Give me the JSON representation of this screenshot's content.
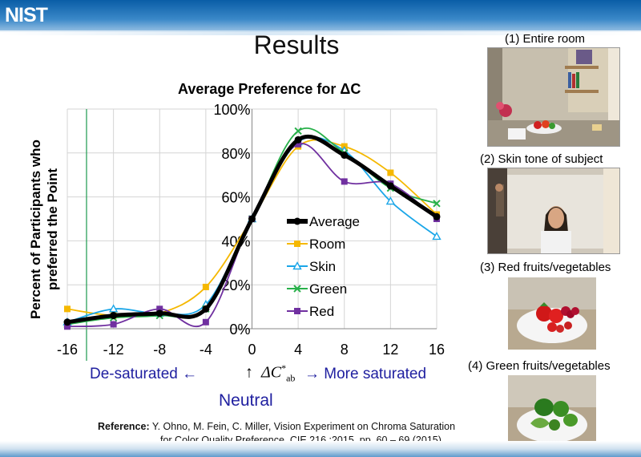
{
  "header": {
    "logo": "NIST"
  },
  "slide_title": "Results",
  "chart_data": {
    "type": "line",
    "title": "Average  Preference for ΔC",
    "xlabel": "ΔC*ab",
    "ylabel": "Percent of Participants who preferred the Point",
    "x": [
      -16,
      -12,
      -8,
      -4,
      0,
      4,
      8,
      12,
      16
    ],
    "x_ticks": [
      "-16",
      "-12",
      "-8",
      "-4",
      "0",
      "4",
      "8",
      "12",
      "16"
    ],
    "y_ticks": [
      "0%",
      "20%",
      "40%",
      "60%",
      "80%",
      "100%"
    ],
    "ylim": [
      0,
      100
    ],
    "xlim": [
      -16,
      16
    ],
    "series": [
      {
        "name": "Average",
        "color": "#000000",
        "marker": "circle",
        "values": [
          3,
          6,
          7,
          9,
          50,
          86,
          79,
          65,
          51
        ]
      },
      {
        "name": "Room",
        "color": "#f5b800",
        "marker": "square",
        "values": [
          9,
          6,
          7,
          19,
          50,
          83,
          83,
          71,
          52
        ]
      },
      {
        "name": "Skin",
        "color": "#1aa6e8",
        "marker": "triangle",
        "values": [
          3,
          9,
          7,
          11,
          50,
          85,
          81,
          58,
          42
        ]
      },
      {
        "name": "Green",
        "color": "#28b04a",
        "marker": "x",
        "values": [
          2,
          5,
          6,
          9,
          50,
          90,
          80,
          64,
          57
        ]
      },
      {
        "name": "Red",
        "color": "#7030a0",
        "marker": "square",
        "values": [
          1,
          2,
          9,
          3,
          50,
          84,
          67,
          66,
          50
        ]
      }
    ]
  },
  "annotations": {
    "desaturated": "De-saturated ←",
    "delta_symbol": "↑",
    "delta_c": "ΔC",
    "delta_sup": "*",
    "delta_sub": "ab",
    "more_saturated": "→ More saturated",
    "neutral": "Neutral"
  },
  "reference": {
    "label": "Reference:",
    "line1": "Y. Ohno, M. Fein, C. Miller, Vision Experiment on Chroma Saturation",
    "line2": "for Color Quality Preference, CIE 216 :2015, pp. 60 – 69 (2015)"
  },
  "photos": [
    {
      "label": "(1) Entire room"
    },
    {
      "label": "(2) Skin tone of subject"
    },
    {
      "label": "(3) Red fruits/vegetables"
    },
    {
      "label": "(4) Green fruits/vegetables"
    }
  ]
}
